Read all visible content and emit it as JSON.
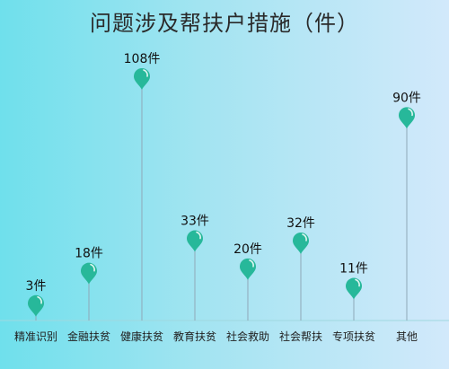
{
  "chart_data": {
    "type": "pin",
    "title": "问题涉及帮扶户措施（件）",
    "categories": [
      "精准识别",
      "金融扶贫",
      "健康扶贫",
      "教育扶贫",
      "社会救助",
      "社会帮扶",
      "专项扶贫",
      "其他"
    ],
    "values": [
      3,
      18,
      108,
      33,
      20,
      32,
      11,
      90
    ],
    "data_labels": [
      "3件",
      "18件",
      "108件",
      "33件",
      "20件",
      "32件",
      "11件",
      "90件"
    ],
    "unit": "件",
    "ylim": [
      0,
      108
    ],
    "grid": false,
    "legend": "none",
    "colors": {
      "pin": "#27b89a",
      "stem": "#8fa8b8",
      "baseline": "#9fd8df"
    }
  }
}
